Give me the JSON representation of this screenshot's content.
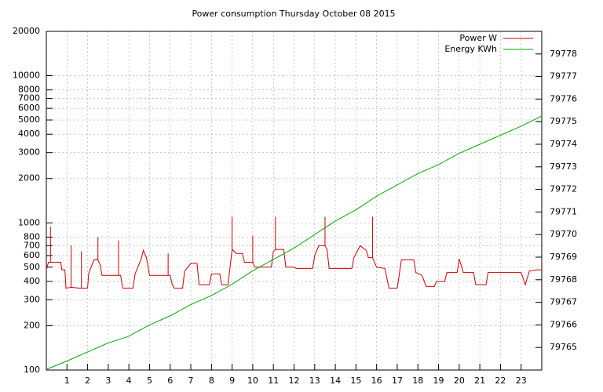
{
  "chart_data": {
    "type": "line",
    "title": "Power consumption Thursday October 08 2015",
    "xlim": [
      0,
      24
    ],
    "xticks": [
      1,
      2,
      3,
      4,
      5,
      6,
      7,
      8,
      9,
      10,
      11,
      12,
      13,
      14,
      15,
      16,
      17,
      18,
      19,
      20,
      21,
      22,
      23
    ],
    "ylim": [
      100,
      20000
    ],
    "yscale": "log",
    "yticks": [
      100,
      200,
      300,
      400,
      500,
      600,
      700,
      800,
      1000,
      2000,
      3000,
      4000,
      5000,
      6000,
      7000,
      8000,
      10000,
      20000
    ],
    "y2lim": [
      79764,
      79779
    ],
    "y2ticks": [
      79765,
      79766,
      79767,
      79768,
      79769,
      79770,
      79771,
      79772,
      79773,
      79774,
      79775,
      79776,
      79777,
      79778
    ],
    "grid": true,
    "legend": "top-right",
    "series": [
      {
        "name": "Power W",
        "color": "#cc0000",
        "x": [
          0,
          0.1,
          0.2,
          0.2,
          0.2,
          0.7,
          0.75,
          0.9,
          0.95,
          1.2,
          1.2,
          1.2,
          1.6,
          1.7,
          1.7,
          1.7,
          2.0,
          2.05,
          2.3,
          2.5,
          2.5,
          2.5,
          2.6,
          2.7,
          3.5,
          3.5,
          3.5,
          3.6,
          3.7,
          4.2,
          4.3,
          4.6,
          4.7,
          4.85,
          5.0,
          5.9,
          5.9,
          5.9,
          6.0,
          6.1,
          6.2,
          6.6,
          6.7,
          7.0,
          7.3,
          7.4,
          7.9,
          8.0,
          8.4,
          8.5,
          8.8,
          8.9,
          9.0,
          9.0,
          9.0,
          9.2,
          9.5,
          9.6,
          10.0,
          10.0,
          10.0,
          10.1,
          10.9,
          11.0,
          11.1,
          11.1,
          11.1,
          11.5,
          11.6,
          12.0,
          12.1,
          12.9,
          13.0,
          13.2,
          13.5,
          13.5,
          13.5,
          13.6,
          13.7,
          14.8,
          14.9,
          15.2,
          15.5,
          15.6,
          15.8,
          15.8,
          15.8,
          16.0,
          16.4,
          16.6,
          17.0,
          17.2,
          17.8,
          17.9,
          18.2,
          18.4,
          18.8,
          18.9,
          19.3,
          19.4,
          19.9,
          20.0,
          20.2,
          20.7,
          20.8,
          21.3,
          21.4,
          22.0,
          23.0,
          23.2,
          23.4,
          23.8,
          24
        ],
        "values": [
          480,
          540,
          540,
          940,
          540,
          540,
          480,
          480,
          360,
          365,
          700,
          365,
          360,
          360,
          640,
          360,
          360,
          450,
          560,
          560,
          800,
          560,
          520,
          440,
          440,
          760,
          440,
          440,
          360,
          360,
          450,
          570,
          650,
          580,
          440,
          440,
          620,
          440,
          440,
          380,
          360,
          360,
          470,
          530,
          530,
          380,
          380,
          450,
          450,
          380,
          380,
          500,
          660,
          1100,
          660,
          620,
          620,
          540,
          540,
          820,
          540,
          500,
          500,
          640,
          660,
          1100,
          660,
          660,
          500,
          500,
          490,
          490,
          600,
          700,
          700,
          1100,
          700,
          660,
          490,
          490,
          580,
          700,
          650,
          580,
          580,
          1100,
          580,
          500,
          490,
          360,
          360,
          560,
          560,
          460,
          440,
          370,
          370,
          400,
          400,
          460,
          460,
          570,
          460,
          460,
          380,
          380,
          460,
          460,
          460,
          380,
          470,
          480,
          480
        ]
      },
      {
        "name": "Energy KWh",
        "color": "#00aa00",
        "axis": "y2",
        "x": [
          0,
          1,
          2,
          3,
          4,
          5,
          6,
          7,
          8,
          9,
          10,
          11,
          12,
          13,
          14,
          15,
          16,
          17,
          18,
          19,
          20,
          21,
          22,
          23,
          24
        ],
        "values": [
          79764.03,
          79764.4,
          79764.8,
          79765.2,
          79765.5,
          79766.0,
          79766.4,
          79766.9,
          79767.3,
          79767.8,
          79768.4,
          79768.9,
          79769.4,
          79770.0,
          79770.6,
          79771.1,
          79771.7,
          79772.2,
          79772.7,
          79773.1,
          79773.6,
          79774.0,
          79774.4,
          79774.8,
          79775.25
        ]
      }
    ]
  }
}
